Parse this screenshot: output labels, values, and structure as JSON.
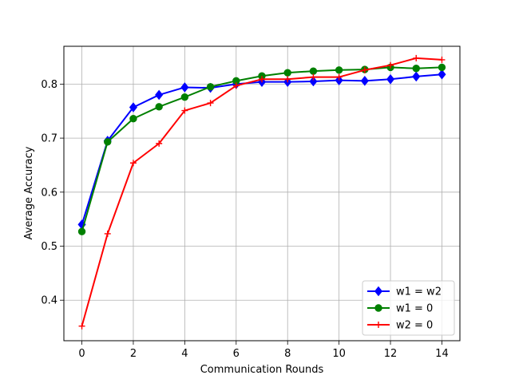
{
  "chart_data": {
    "type": "line",
    "title": "",
    "xlabel": "Communication Rounds",
    "ylabel": "Average Accuracy",
    "xlim": [
      -0.7,
      14.7
    ],
    "ylim": [
      0.325,
      0.87
    ],
    "xticks": [
      0,
      2,
      4,
      6,
      8,
      10,
      12,
      14
    ],
    "yticks": [
      0.4,
      0.5,
      0.6,
      0.7,
      0.8
    ],
    "ytick_labels": [
      "0.4",
      "0.5",
      "0.6",
      "0.7",
      "0.8"
    ],
    "grid": true,
    "legend_position": "lower-right",
    "x": [
      0,
      1,
      2,
      3,
      4,
      5,
      6,
      7,
      8,
      9,
      10,
      11,
      12,
      13,
      14
    ],
    "series": [
      {
        "name": " w1 = w2",
        "color": "#0000ff",
        "marker": "diamond",
        "values": [
          0.54,
          0.695,
          0.757,
          0.78,
          0.794,
          0.793,
          0.8,
          0.804,
          0.804,
          0.805,
          0.807,
          0.806,
          0.809,
          0.814,
          0.818
        ]
      },
      {
        "name": "w1 = 0",
        "color": "#008000",
        "marker": "circle",
        "values": [
          0.527,
          0.693,
          0.736,
          0.758,
          0.776,
          0.795,
          0.806,
          0.815,
          0.821,
          0.824,
          0.826,
          0.827,
          0.831,
          0.829,
          0.831
        ]
      },
      {
        "name": "w2 = 0",
        "color": "#ff0000",
        "marker": "plus",
        "values": [
          0.352,
          0.523,
          0.654,
          0.69,
          0.751,
          0.765,
          0.797,
          0.809,
          0.809,
          0.813,
          0.813,
          0.826,
          0.835,
          0.848,
          0.845
        ]
      }
    ]
  }
}
